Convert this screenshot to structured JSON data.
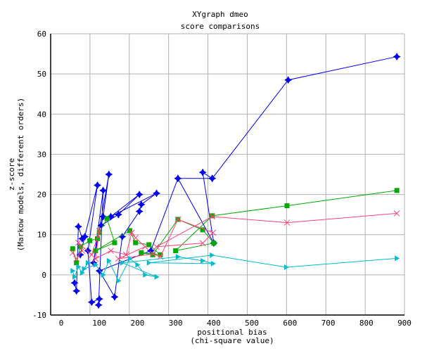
{
  "chart_data": {
    "type": "line",
    "title": "XYgraph dmeo",
    "subtitle": "score comparisons",
    "xlabel": "positional bias",
    "xlabel2": "(chi-square value)",
    "ylabel": "z-score",
    "ylabel2": "(Markow models, different orders)",
    "xlim": [
      0,
      900
    ],
    "ylim": [
      -10,
      60
    ],
    "xticks": [
      "0",
      "100",
      "200",
      "300",
      "400",
      "500",
      "600",
      "700",
      "800",
      "900"
    ],
    "yticks": [
      "-10",
      "0",
      "10",
      "20",
      "30",
      "40",
      "50",
      "60"
    ],
    "grid": true,
    "series": [
      {
        "name": "blue",
        "color": "#0000ee",
        "marker": "star",
        "points": [
          [
            35,
            -2
          ],
          [
            40,
            -4
          ],
          [
            45,
            12
          ],
          [
            55,
            9
          ],
          [
            62,
            9.5
          ],
          [
            50,
            5
          ],
          [
            95,
            22.3
          ],
          [
            70,
            6
          ],
          [
            80,
            -6.8
          ],
          [
            100,
            -6
          ],
          [
            98,
            -7.5
          ],
          [
            110,
            21
          ],
          [
            85,
            3
          ],
          [
            125,
            25
          ],
          [
            110,
            14.5
          ],
          [
            105,
            12.3
          ],
          [
            150,
            15
          ],
          [
            205,
            20
          ],
          [
            130,
            14.5
          ],
          [
            250,
            20.3
          ],
          [
            210,
            17.5
          ],
          [
            205,
            15.8
          ],
          [
            160,
            9.5
          ],
          [
            140,
            -5.5
          ],
          [
            100,
            1
          ],
          [
            235,
            6
          ],
          [
            306,
            24
          ],
          [
            396,
            24
          ],
          [
            371,
            25.5
          ],
          [
            400,
            7.9
          ],
          [
            306,
            24
          ],
          [
            396,
            24
          ],
          [
            595,
            48.5
          ],
          [
            880,
            54.3
          ]
        ]
      },
      {
        "name": "green",
        "color": "#00aa00",
        "marker": "square",
        "points": [
          [
            30,
            6.5
          ],
          [
            40,
            3
          ],
          [
            50,
            7
          ],
          [
            75,
            8.5
          ],
          [
            95,
            9
          ],
          [
            100,
            10.5
          ],
          [
            120,
            14
          ],
          [
            140,
            8
          ],
          [
            90,
            6
          ],
          [
            180,
            11
          ],
          [
            195,
            8
          ],
          [
            230,
            7.5
          ],
          [
            260,
            5
          ],
          [
            210,
            5.5
          ],
          [
            240,
            5
          ],
          [
            306,
            13.8
          ],
          [
            371,
            11.2
          ],
          [
            400,
            7.9
          ],
          [
            300,
            6
          ],
          [
            396,
            14.7
          ],
          [
            592,
            17.2
          ],
          [
            880,
            21
          ]
        ]
      },
      {
        "name": "pink",
        "color": "#ff4477",
        "marker": "bowtie",
        "points": [
          [
            30,
            5.5
          ],
          [
            40,
            4
          ],
          [
            55,
            6
          ],
          [
            45,
            8
          ],
          [
            80,
            5
          ],
          [
            100,
            11
          ],
          [
            90,
            4
          ],
          [
            130,
            6
          ],
          [
            170,
            5
          ],
          [
            185,
            10.5
          ],
          [
            195,
            9.2
          ],
          [
            220,
            7
          ],
          [
            150,
            4
          ],
          [
            240,
            5.2
          ],
          [
            260,
            4.5
          ],
          [
            306,
            13.8
          ],
          [
            398,
            10.5
          ],
          [
            371,
            7.9
          ],
          [
            250,
            7
          ],
          [
            396,
            14.5
          ],
          [
            592,
            13
          ],
          [
            880,
            15.3
          ]
        ]
      },
      {
        "name": "cyan",
        "color": "#00bbcc",
        "marker": "triangle",
        "points": [
          [
            30,
            1
          ],
          [
            35,
            -0.5
          ],
          [
            45,
            2
          ],
          [
            55,
            0.5
          ],
          [
            70,
            3
          ],
          [
            60,
            1.5
          ],
          [
            90,
            2.5
          ],
          [
            110,
            0
          ],
          [
            125,
            3.5
          ],
          [
            150,
            -1.5
          ],
          [
            180,
            4
          ],
          [
            200,
            2.5
          ],
          [
            220,
            0
          ],
          [
            250,
            -0.5
          ],
          [
            160,
            3
          ],
          [
            306,
            4.5
          ],
          [
            371,
            3.5
          ],
          [
            398,
            2.8
          ],
          [
            230,
            3
          ],
          [
            395,
            4.9
          ],
          [
            590,
            1.9
          ],
          [
            880,
            4.1
          ]
        ]
      }
    ]
  }
}
